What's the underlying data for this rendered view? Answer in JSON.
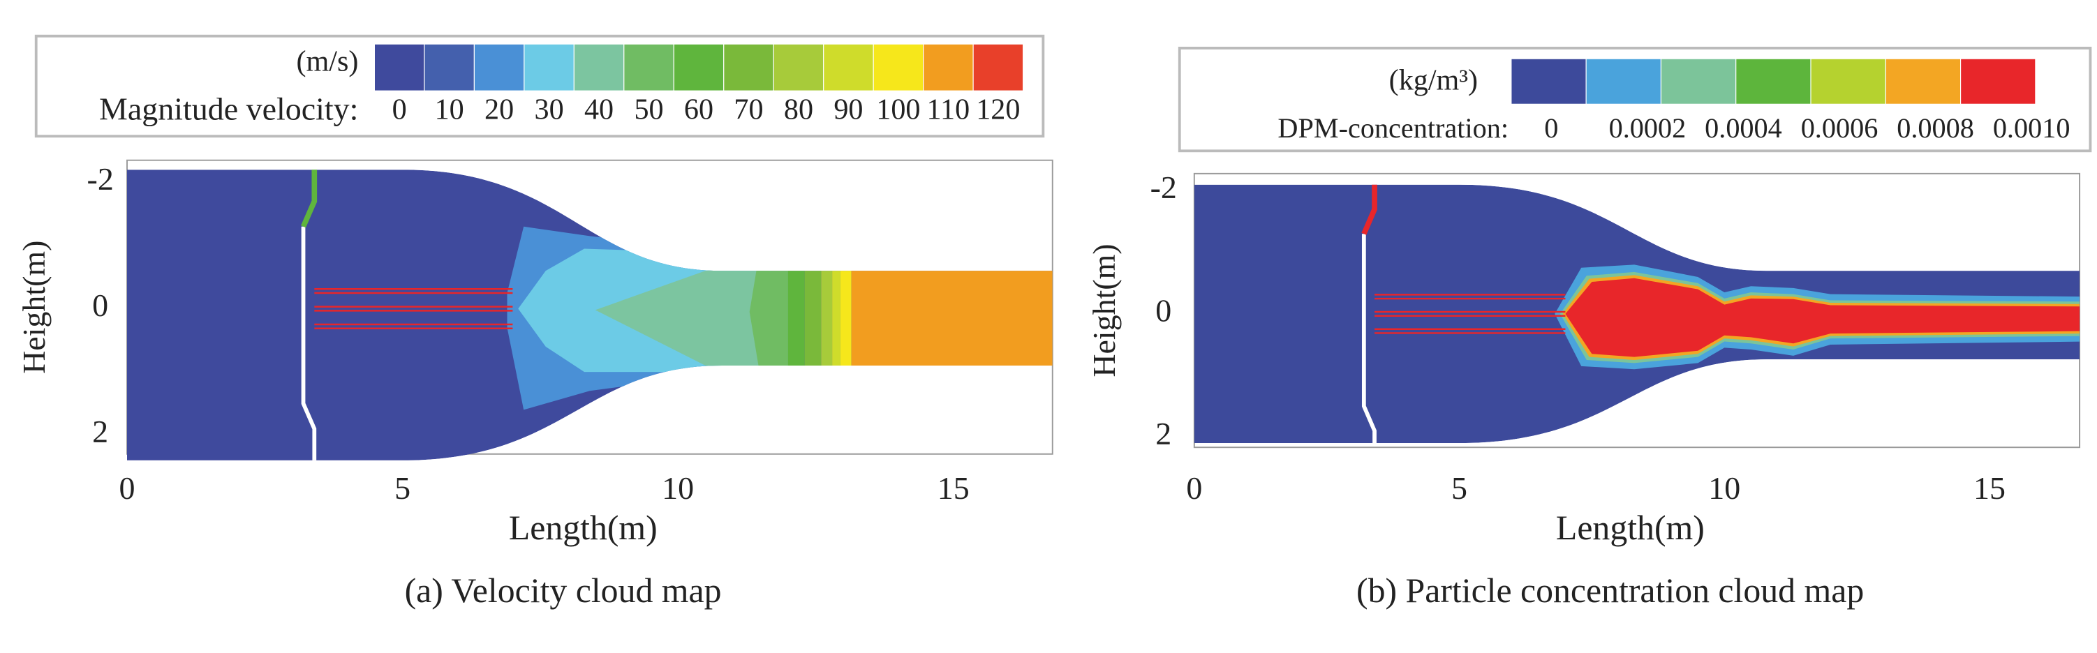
{
  "chart_data": [
    {
      "type": "contour",
      "title": "(a) Velocity cloud map",
      "xlabel": "Length(m)",
      "ylabel": "Height(m)",
      "xlim": [
        0,
        16.8
      ],
      "ylim": [
        -2.35,
        2.3
      ],
      "y_inverted": true,
      "xticks": [
        0,
        5,
        10,
        15
      ],
      "yticks": [
        -2,
        0,
        2
      ],
      "colorbar": {
        "unit": "(m/s)",
        "label": "Magnitude velocity:",
        "ticks": [
          0,
          10,
          20,
          30,
          40,
          50,
          60,
          70,
          80,
          90,
          100,
          110,
          120
        ],
        "colors": [
          "#3f4a9d",
          "#4460ad",
          "#4a90d6",
          "#6ccbe6",
          "#7cc5a0",
          "#70bc63",
          "#5fb53d",
          "#7ab93a",
          "#a7cb3a",
          "#cfdc2b",
          "#f6e71b",
          "#f29d1f",
          "#e8402a"
        ]
      }
    },
    {
      "type": "contour",
      "title": "(b) Particle concentration cloud map",
      "xlabel": "Length(m)",
      "ylabel": "Height(m)",
      "xlim": [
        0,
        16.7
      ],
      "ylim": [
        -2.28,
        2.17
      ],
      "y_inverted": true,
      "xticks": [
        0,
        5,
        10,
        15
      ],
      "yticks": [
        -2,
        0,
        2
      ],
      "colorbar": {
        "unit": "(kg/m³)",
        "label": "DPM-concentration:",
        "ticks": [
          0,
          0.0002,
          0.0004,
          0.0006,
          0.0008,
          {
            "value": 0.001,
            "label": "0.0010"
          }
        ],
        "colors": [
          "#3d4a9b",
          "#4aa3dc",
          "#7cc49a",
          "#5db53c",
          "#b5d22f",
          "#f3a623",
          "#e8262a"
        ]
      }
    }
  ]
}
